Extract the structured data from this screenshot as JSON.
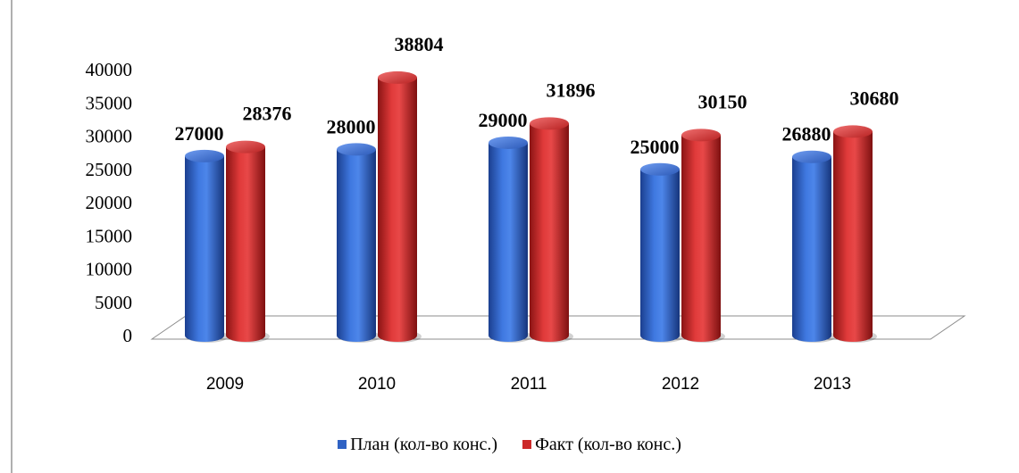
{
  "chart_data": {
    "type": "bar",
    "style": "3d-cylinder",
    "categories": [
      "2009",
      "2010",
      "2011",
      "2012",
      "2013"
    ],
    "series": [
      {
        "name": "План (кол-во конс.)",
        "values": [
          27000,
          28000,
          29000,
          25000,
          26880
        ],
        "color": "#2f62c4"
      },
      {
        "name": "Факт (кол-во конс.)",
        "values": [
          28376,
          38804,
          31896,
          30150,
          30680
        ],
        "color": "#cc2a2a"
      }
    ],
    "ylim": [
      0,
      40000
    ],
    "yticks": [
      "0",
      "5000",
      "10000",
      "15000",
      "20000",
      "25000",
      "30000",
      "35000",
      "40000"
    ],
    "data_labels": true,
    "grid": false,
    "legend_position": "bottom"
  }
}
